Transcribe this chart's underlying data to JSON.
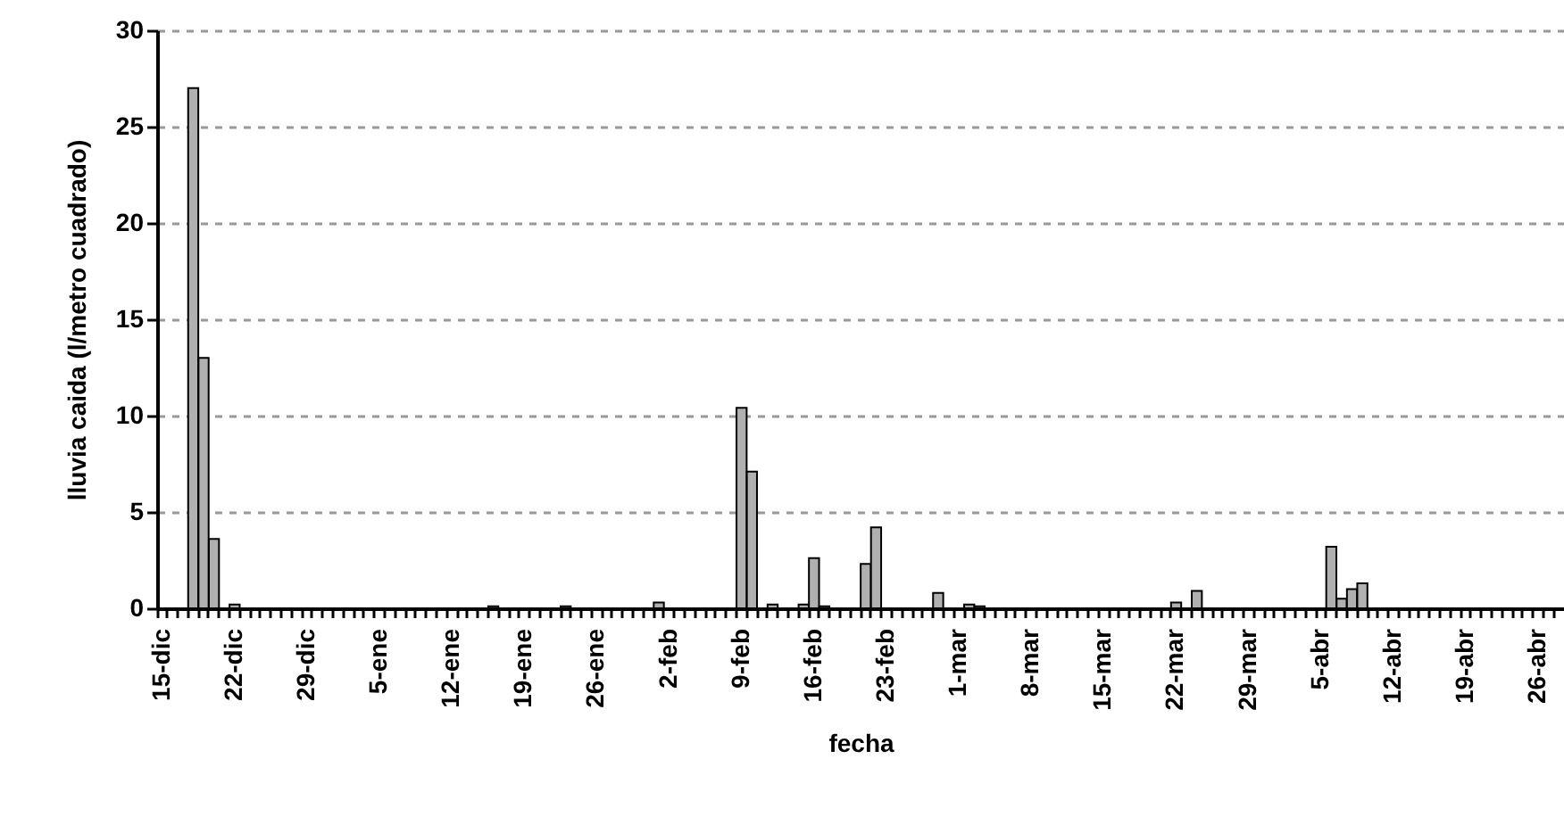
{
  "chart_data": {
    "type": "bar",
    "xlabel": "fecha",
    "ylabel": "lluvia caida (l/metro cuadrado)",
    "categories": [
      "15-dic",
      null,
      null,
      null,
      null,
      null,
      null,
      "22-dic",
      null,
      null,
      null,
      null,
      null,
      null,
      "29-dic",
      null,
      null,
      null,
      null,
      null,
      null,
      "5-ene",
      null,
      null,
      null,
      null,
      null,
      null,
      "12-ene",
      null,
      null,
      null,
      null,
      null,
      null,
      "19-ene",
      null,
      null,
      null,
      null,
      null,
      null,
      "26-ene",
      null,
      null,
      null,
      null,
      null,
      null,
      "2-feb",
      null,
      null,
      null,
      null,
      null,
      null,
      "9-feb",
      null,
      null,
      null,
      null,
      null,
      null,
      "16-feb",
      null,
      null,
      null,
      null,
      null,
      null,
      "23-feb",
      null,
      null,
      null,
      null,
      null,
      null,
      "1-mar",
      null,
      null,
      null,
      null,
      null,
      null,
      "8-mar",
      null,
      null,
      null,
      null,
      null,
      null,
      "15-mar",
      null,
      null,
      null,
      null,
      null,
      null,
      "22-mar",
      null,
      null,
      null,
      null,
      null,
      null,
      "29-mar",
      null,
      null,
      null,
      null,
      null,
      null,
      "5-abr",
      null,
      null,
      null,
      null,
      null,
      null,
      "12-abr",
      null,
      null,
      null,
      null,
      null,
      null,
      "19-abr",
      null,
      null,
      null,
      null,
      null,
      null,
      "26-abr",
      null,
      null
    ],
    "values": [
      0,
      0,
      0,
      27,
      13,
      3.6,
      0,
      0.2,
      0,
      0,
      0,
      0,
      0,
      0,
      0,
      0,
      0,
      0,
      0,
      0,
      0,
      0,
      0,
      0,
      0,
      0,
      0,
      0,
      0,
      0,
      0,
      0,
      0.1,
      0,
      0,
      0,
      0,
      0,
      0,
      0.1,
      0,
      0,
      0,
      0,
      0,
      0,
      0,
      0,
      0.3,
      0,
      0,
      0,
      0,
      0,
      0,
      0,
      10.4,
      7.1,
      0,
      0.2,
      0,
      0,
      0.2,
      2.6,
      0.1,
      0,
      0,
      0,
      2.3,
      4.2,
      0,
      0,
      0,
      0,
      0,
      0.8,
      0,
      0,
      0.2,
      0.1,
      0,
      0,
      0,
      0,
      0,
      0,
      0,
      0,
      0,
      0,
      0,
      0,
      0,
      0,
      0,
      0,
      0,
      0,
      0.3,
      0,
      0.9,
      0,
      0,
      0,
      0,
      0,
      0,
      0,
      0,
      0,
      0,
      0,
      0,
      3.2,
      0.5,
      1.0,
      1.3,
      0,
      0,
      0,
      0,
      0,
      0,
      0,
      0,
      0,
      0,
      0,
      0,
      0,
      0,
      0,
      0,
      0,
      0,
      0
    ],
    "color": "#b0b0b0",
    "ylim": [
      0,
      30
    ],
    "yticks": [
      0,
      5,
      10,
      15,
      20,
      25,
      30
    ],
    "grid": "y"
  }
}
